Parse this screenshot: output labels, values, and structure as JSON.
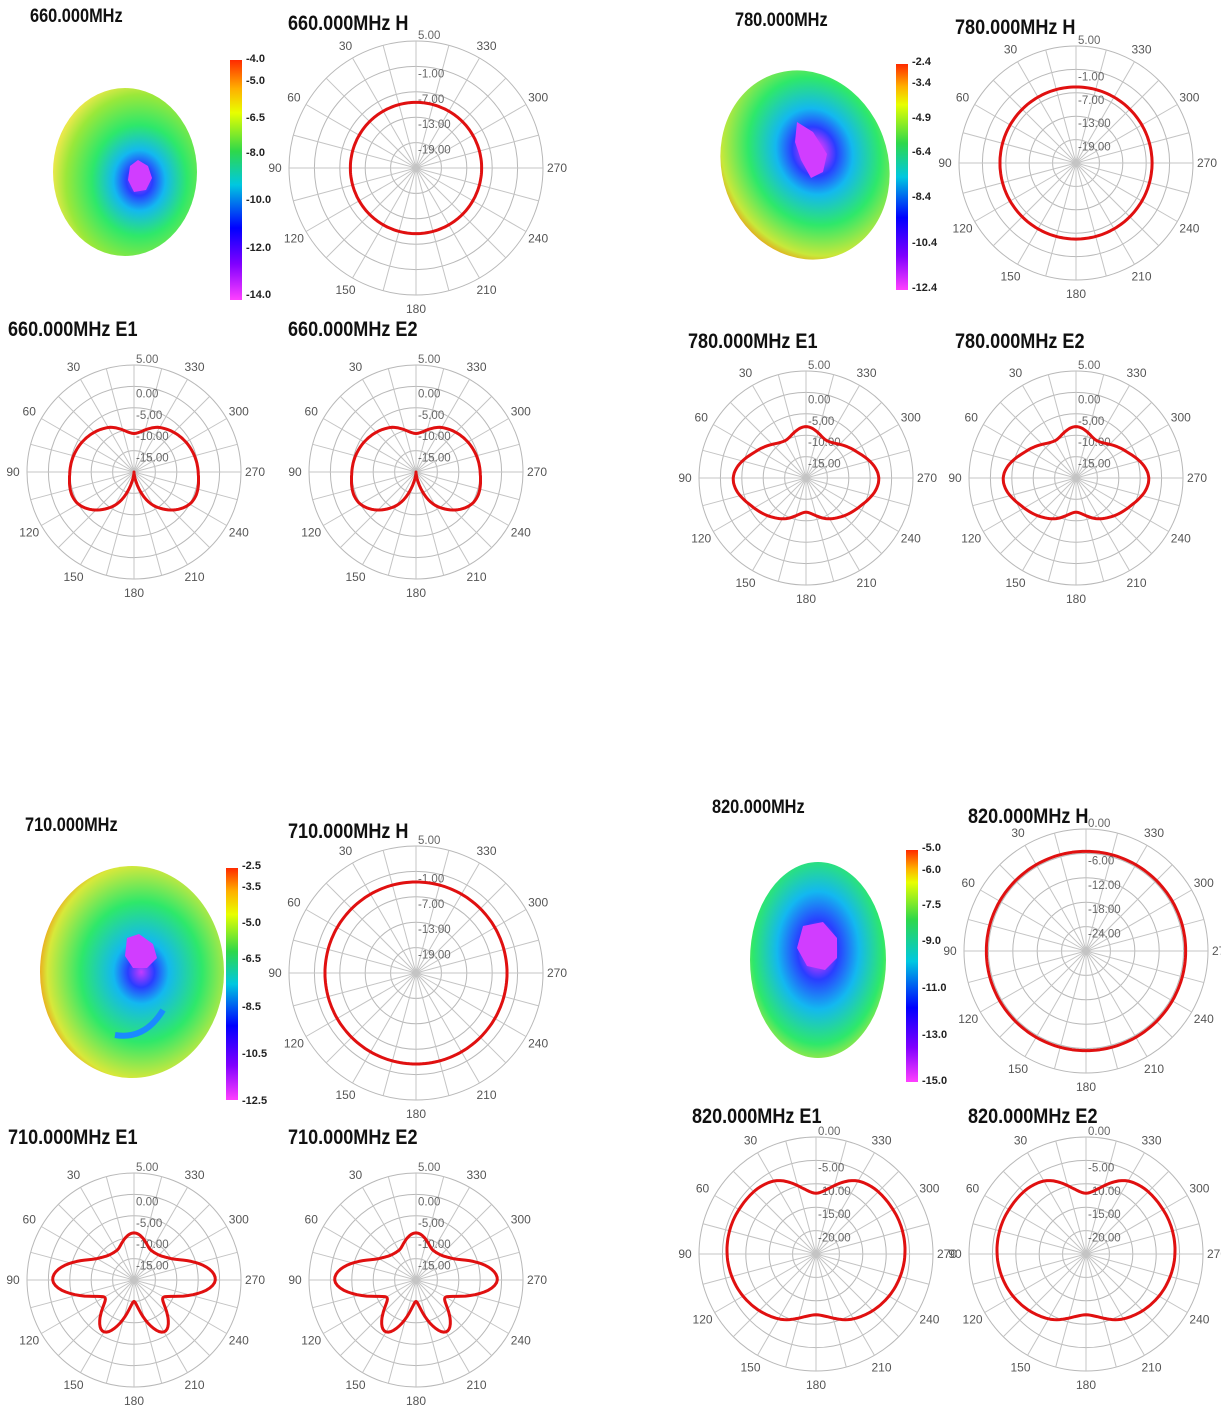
{
  "freq_blocks": [
    {
      "freq_label": "660.000MHz",
      "colorbar": {
        "top": "#ff2a00",
        "labels": [
          "-4.0",
          "-5.0",
          "-6.5",
          "-8.0",
          "-10.0",
          "-12.0",
          "-14.0"
        ]
      },
      "charts": [
        {
          "title": "660.000MHz  H",
          "radial_labels": [
            "5.00",
            "-1.00",
            "-7.00",
            "-13.00",
            "-19.00"
          ]
        },
        {
          "title": "660.000MHz  E1",
          "radial_labels": [
            "5.00",
            "0.00",
            "-5.00",
            "-10.00",
            "-15.00"
          ]
        },
        {
          "title": "660.000MHz  E2",
          "radial_labels": [
            "5.00",
            "0.00",
            "-5.00",
            "-10.00",
            "-15.00"
          ]
        }
      ]
    },
    {
      "freq_label": "780.000MHz",
      "colorbar": {
        "top": "#ff2a00",
        "labels": [
          "-2.4",
          "-3.4",
          "-4.9",
          "-6.4",
          "-8.4",
          "-10.4",
          "-12.4"
        ]
      },
      "charts": [
        {
          "title": "780.000MHz  H",
          "radial_labels": [
            "5.00",
            "-1.00",
            "-7.00",
            "-13.00",
            "-19.00"
          ]
        },
        {
          "title": "780.000MHz  E1",
          "radial_labels": [
            "5.00",
            "0.00",
            "-5.00",
            "-10.00",
            "-15.00"
          ]
        },
        {
          "title": "780.000MHz  E2",
          "radial_labels": [
            "5.00",
            "0.00",
            "-5.00",
            "-10.00",
            "-15.00"
          ]
        }
      ]
    },
    {
      "freq_label": "710.000MHz",
      "colorbar": {
        "top": "#ff2a00",
        "labels": [
          "-2.5",
          "-3.5",
          "-5.0",
          "-6.5",
          "-8.5",
          "-10.5",
          "-12.5"
        ]
      },
      "charts": [
        {
          "title": "710.000MHz  H",
          "radial_labels": [
            "5.00",
            "-1.00",
            "-7.00",
            "-13.00",
            "-19.00"
          ]
        },
        {
          "title": "710.000MHz  E1",
          "radial_labels": [
            "5.00",
            "0.00",
            "-5.00",
            "-10.00",
            "-15.00"
          ]
        },
        {
          "title": "710.000MHz  E2",
          "radial_labels": [
            "5.00",
            "0.00",
            "-5.00",
            "-10.00",
            "-15.00"
          ]
        }
      ]
    },
    {
      "freq_label": "820.000MHz",
      "colorbar": {
        "top": "#ff2a00",
        "labels": [
          "-5.0",
          "-6.0",
          "-7.5",
          "-9.0",
          "-11.0",
          "-13.0",
          "-15.0"
        ]
      },
      "charts": [
        {
          "title": "820.000MHz  H",
          "radial_labels": [
            "0.00",
            "-6.00",
            "-12.00",
            "-18.00",
            "-24.00"
          ]
        },
        {
          "title": "820.000MHz  E1",
          "radial_labels": [
            "0.00",
            "-5.00",
            "-10.00",
            "-15.00",
            "-20.00"
          ]
        },
        {
          "title": "820.000MHz  E2",
          "radial_labels": [
            "0.00",
            "-5.00",
            "-10.00",
            "-15.00",
            "-20.00"
          ]
        }
      ]
    }
  ],
  "chart_data": [
    {
      "type": "polar",
      "title": "660.000MHz  H",
      "angle_labels": [
        "30",
        "60",
        "90",
        "120",
        "150",
        "180",
        "210",
        "240",
        "270",
        "300",
        "330"
      ],
      "rlim": [
        -25,
        5
      ],
      "series": [
        {
          "theta_deg": [
            0,
            90,
            180,
            270
          ],
          "r_db": [
            -9.5,
            -9.5,
            -9.5,
            -9.5
          ]
        }
      ]
    },
    {
      "type": "polar",
      "title": "660.000MHz  E1",
      "angle_labels": [
        "30",
        "60",
        "90",
        "120",
        "150",
        "180",
        "210",
        "240",
        "270",
        "300",
        "330"
      ],
      "rlim": [
        -20,
        5
      ],
      "series": [
        {
          "theta_deg": [
            0,
            30,
            60,
            90,
            120,
            150,
            180,
            210,
            240,
            270,
            300,
            330
          ],
          "r_db": [
            -11,
            -8,
            -6,
            -5,
            -5,
            -11,
            -20,
            -11,
            -5,
            -5,
            -6,
            -8
          ]
        }
      ]
    },
    {
      "type": "polar",
      "title": "660.000MHz  E2",
      "angle_labels": [
        "30",
        "60",
        "90",
        "120",
        "150",
        "180",
        "210",
        "240",
        "270",
        "300",
        "330"
      ],
      "rlim": [
        -20,
        5
      ],
      "series": [
        {
          "theta_deg": [
            0,
            30,
            60,
            90,
            120,
            150,
            180,
            210,
            240,
            270,
            300,
            330
          ],
          "r_db": [
            -11,
            -8,
            -6,
            -5,
            -5,
            -11,
            -20,
            -11,
            -5,
            -5,
            -6,
            -8
          ]
        }
      ]
    },
    {
      "type": "polar",
      "title": "780.000MHz  H",
      "angle_labels": [
        "30",
        "60",
        "90",
        "120",
        "150",
        "180",
        "210",
        "240",
        "270",
        "300",
        "330"
      ],
      "rlim": [
        -25,
        5
      ],
      "series": [
        {
          "theta_deg": [
            0,
            90,
            180,
            270
          ],
          "r_db": [
            -5.5,
            -5.5,
            -5.5,
            -5.5
          ]
        }
      ]
    },
    {
      "type": "polar",
      "title": "780.000MHz  E1",
      "angle_labels": [
        "30",
        "60",
        "90",
        "120",
        "150",
        "180",
        "210",
        "240",
        "270",
        "300",
        "330"
      ],
      "rlim": [
        -20,
        5
      ],
      "series": [
        {
          "theta_deg": [
            0,
            30,
            60,
            90,
            120,
            150,
            180,
            210,
            240,
            270,
            300,
            330
          ],
          "r_db": [
            -8,
            -10,
            -7,
            -3,
            -6,
            -9,
            -12,
            -9,
            -6,
            -3,
            -7,
            -10
          ]
        }
      ]
    },
    {
      "type": "polar",
      "title": "780.000MHz  E2",
      "angle_labels": [
        "30",
        "60",
        "90",
        "120",
        "150",
        "180",
        "210",
        "240",
        "270",
        "300",
        "330"
      ],
      "rlim": [
        -20,
        5
      ],
      "series": [
        {
          "theta_deg": [
            0,
            30,
            60,
            90,
            120,
            150,
            180,
            210,
            240,
            270,
            300,
            330
          ],
          "r_db": [
            -8,
            -10,
            -7,
            -3,
            -6,
            -9,
            -12,
            -9,
            -6,
            -3,
            -7,
            -10
          ]
        }
      ]
    },
    {
      "type": "polar",
      "title": "710.000MHz  H",
      "angle_labels": [
        "30",
        "60",
        "90",
        "120",
        "150",
        "180",
        "210",
        "240",
        "270",
        "300",
        "330"
      ],
      "rlim": [
        -25,
        5
      ],
      "series": [
        {
          "theta_deg": [
            0,
            90,
            180,
            270
          ],
          "r_db": [
            -3.5,
            -3.5,
            -3.5,
            -3.5
          ]
        }
      ]
    },
    {
      "type": "polar",
      "title": "710.000MHz  E1",
      "angle_labels": [
        "30",
        "60",
        "90",
        "120",
        "150",
        "180",
        "210",
        "240",
        "270",
        "300",
        "330"
      ],
      "rlim": [
        -20,
        5
      ],
      "series": [
        {
          "theta_deg": [
            0,
            30,
            60,
            90,
            120,
            150,
            180,
            210,
            240,
            270,
            300,
            330
          ],
          "r_db": [
            -9,
            -12,
            -10,
            -1,
            -12,
            -6,
            -15,
            -6,
            -12,
            -1,
            -10,
            -12
          ]
        }
      ]
    },
    {
      "type": "polar",
      "title": "710.000MHz  E2",
      "angle_labels": [
        "30",
        "60",
        "90",
        "120",
        "150",
        "180",
        "210",
        "240",
        "270",
        "300",
        "330"
      ],
      "rlim": [
        -20,
        5
      ],
      "series": [
        {
          "theta_deg": [
            0,
            30,
            60,
            90,
            120,
            150,
            180,
            210,
            240,
            270,
            300,
            330
          ],
          "r_db": [
            -9,
            -12,
            -10,
            -1,
            -12,
            -6,
            -15,
            -6,
            -12,
            -1,
            -10,
            -12
          ]
        }
      ]
    },
    {
      "type": "polar",
      "title": "820.000MHz  H",
      "angle_labels": [
        "30",
        "60",
        "90",
        "120",
        "150",
        "180",
        "210",
        "240",
        "270",
        "300",
        "330"
      ],
      "rlim": [
        -30,
        0
      ],
      "series": [
        {
          "theta_deg": [
            0,
            90,
            180,
            270
          ],
          "r_db": [
            -5.5,
            -5.5,
            -5.5,
            -5.5
          ]
        }
      ]
    },
    {
      "type": "polar",
      "title": "820.000MHz  E1",
      "angle_labels": [
        "30",
        "60",
        "90",
        "120",
        "150",
        "180",
        "210",
        "240",
        "270",
        "300",
        "330"
      ],
      "rlim": [
        -25,
        0
      ],
      "series": [
        {
          "theta_deg": [
            0,
            30,
            60,
            90,
            120,
            150,
            180,
            210,
            240,
            270,
            300,
            330
          ],
          "r_db": [
            -12,
            -7,
            -6,
            -6,
            -7,
            -9,
            -12,
            -9,
            -7,
            -6,
            -6,
            -7
          ]
        }
      ]
    },
    {
      "type": "polar",
      "title": "820.000MHz  E2",
      "angle_labels": [
        "30",
        "60",
        "90",
        "120",
        "150",
        "180",
        "210",
        "240",
        "270",
        "300",
        "330"
      ],
      "rlim": [
        -25,
        0
      ],
      "series": [
        {
          "theta_deg": [
            0,
            30,
            60,
            90,
            120,
            150,
            180,
            210,
            240,
            270,
            300,
            330
          ],
          "r_db": [
            -12,
            -7,
            -6,
            -6,
            -7,
            -9,
            -12,
            -9,
            -7,
            -6,
            -6,
            -7
          ]
        }
      ]
    }
  ]
}
